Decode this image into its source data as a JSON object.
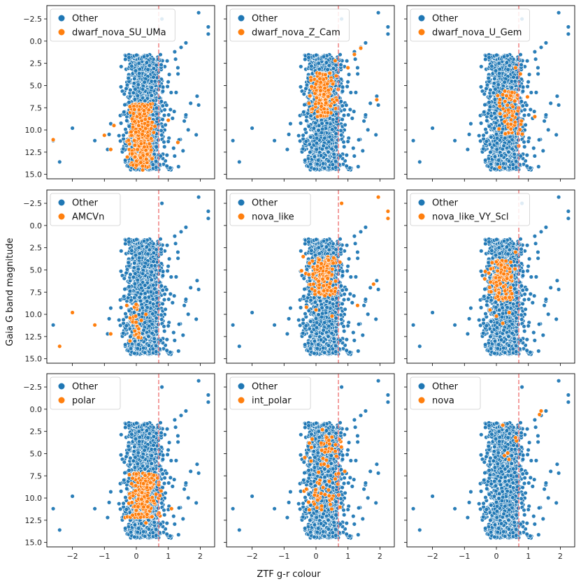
{
  "figure": {
    "xlabel": "ZTF g-r colour",
    "ylabel": "Gaia G band magnitude",
    "other_color": "#1f77b4",
    "highlight_color": "#ff7f0e",
    "threshold_color": "#f08080"
  },
  "chart_data": {
    "type": "scatter",
    "layout": "3x3 grid, shared axes",
    "xlim": [
      -2.8,
      2.45
    ],
    "ylim": [
      15.5,
      -4.0
    ],
    "y_inverted": true,
    "xticks": [
      -2,
      -1,
      0,
      1,
      2
    ],
    "yticks": [
      -2.5,
      0.0,
      2.5,
      5.0,
      7.5,
      10.0,
      12.5,
      15.0
    ],
    "xtick_labels": [
      "−2",
      "−1",
      "0",
      "1",
      "2"
    ],
    "ytick_labels": [
      "−2.5",
      "0.0",
      "2.5",
      "5.0",
      "7.5",
      "10.0",
      "12.5",
      "15.0"
    ],
    "threshold_x": 0.7,
    "grid": false,
    "legend_position": "upper-left",
    "background_series": {
      "name": "Other",
      "description": "all CVs, approx. 1500 points",
      "core": {
        "x_mean": 0.25,
        "x_sd": 0.28,
        "y_range": [
          1.5,
          14.5
        ]
      },
      "outliers": [
        [
          -2.6,
          11.2
        ],
        [
          -2.4,
          13.6
        ],
        [
          -2.0,
          9.8
        ],
        [
          -1.3,
          11.2
        ],
        [
          -0.9,
          12.2
        ],
        [
          -0.85,
          10.5
        ],
        [
          -0.8,
          9.3
        ],
        [
          1.0,
          11.3
        ],
        [
          0.8,
          -2.5
        ],
        [
          1.2,
          1.2
        ],
        [
          1.4,
          0.7
        ],
        [
          1.55,
          0.2
        ],
        [
          1.7,
          7.0
        ],
        [
          1.9,
          6.2
        ],
        [
          1.95,
          7.2
        ],
        [
          1.95,
          -3.2
        ],
        [
          2.25,
          -1.6
        ],
        [
          2.25,
          -0.8
        ],
        [
          1.3,
          3.0
        ],
        [
          1.5,
          9.0
        ]
      ]
    },
    "panels": [
      {
        "label": "dwarf_nova_SU_UMa",
        "cluster": {
          "x_mean": 0.15,
          "x_sd": 0.17,
          "y_min": 7.0,
          "y_max": 14.2,
          "n": 320
        },
        "extra": [
          [
            -2.6,
            11.1
          ],
          [
            -1.0,
            10.6
          ],
          [
            -0.8,
            12.2
          ],
          [
            -0.7,
            9.5
          ],
          [
            1.3,
            11.4
          ],
          [
            1.0,
            8.9
          ],
          [
            0.2,
            14.5
          ]
        ]
      },
      {
        "label": "dwarf_nova_Z_Cam",
        "cluster": {
          "x_mean": 0.22,
          "x_sd": 0.2,
          "y_min": 3.5,
          "y_max": 8.6,
          "n": 160
        },
        "extra": [
          [
            1.2,
            1.5
          ],
          [
            1.4,
            0.8
          ],
          [
            1.9,
            6.6
          ],
          [
            1.0,
            3.0
          ],
          [
            0.6,
            2.2
          ]
        ]
      },
      {
        "label": "dwarf_nova_U_Gem",
        "cluster": {
          "x_mean": 0.45,
          "x_sd": 0.2,
          "y_min": 5.5,
          "y_max": 10.5,
          "n": 70
        },
        "extra": [
          [
            0.6,
            3.0
          ],
          [
            0.75,
            3.7
          ],
          [
            1.2,
            8.5
          ],
          [
            0.7,
            11.8
          ],
          [
            0.1,
            14.2
          ]
        ]
      },
      {
        "label": "AMCVn",
        "cluster": {
          "x_mean": 0.05,
          "x_sd": 0.12,
          "y_min": 8.5,
          "y_max": 12.8,
          "n": 28
        },
        "extra": [
          [
            -2.4,
            13.6
          ],
          [
            -2.0,
            9.8
          ],
          [
            -1.3,
            11.2
          ],
          [
            -0.8,
            12.2
          ],
          [
            -0.2,
            13.0
          ],
          [
            -0.3,
            9.0
          ],
          [
            0.3,
            10.0
          ]
        ]
      },
      {
        "label": "nova_like",
        "cluster": {
          "x_mean": 0.25,
          "x_sd": 0.22,
          "y_min": 3.5,
          "y_max": 8.0,
          "n": 140
        },
        "extra": [
          [
            1.95,
            -3.2
          ],
          [
            2.25,
            -1.6
          ],
          [
            2.25,
            -0.8
          ],
          [
            0.8,
            -2.5
          ],
          [
            1.8,
            6.6
          ],
          [
            -0.4,
            3.5
          ],
          [
            -0.3,
            9.2
          ],
          [
            0.0,
            9.5
          ],
          [
            0.5,
            10.2
          ],
          [
            1.3,
            9.0
          ]
        ]
      },
      {
        "label": "nova_like_VY_Scl",
        "cluster": {
          "x_mean": 0.18,
          "x_sd": 0.2,
          "y_min": 3.8,
          "y_max": 8.4,
          "n": 110
        },
        "extra": [
          [
            0.0,
            10.2
          ],
          [
            0.2,
            11.0
          ],
          [
            0.4,
            9.8
          ],
          [
            -0.2,
            9.5
          ],
          [
            0.6,
            3.0
          ],
          [
            0.3,
            4.0
          ]
        ]
      },
      {
        "label": "polar",
        "cluster": {
          "x_mean": 0.22,
          "x_sd": 0.22,
          "y_min": 7.2,
          "y_max": 12.2,
          "n": 200
        },
        "extra": [
          [
            0.0,
            7.3
          ],
          [
            0.7,
            8.5
          ],
          [
            1.1,
            11.2
          ],
          [
            0.3,
            12.8
          ]
        ]
      },
      {
        "label": "int_polar",
        "cluster": {
          "x_mean": 0.25,
          "x_sd": 0.28,
          "y_min": 3.0,
          "y_max": 11.5,
          "n": 75
        },
        "extra": [
          [
            0.2,
            2.3
          ],
          [
            0.4,
            3.5
          ],
          [
            0.9,
            7.0
          ],
          [
            -0.3,
            9.0
          ]
        ]
      },
      {
        "label": "nova",
        "cluster": {
          "x_mean": 0.3,
          "x_sd": 0.2,
          "y_min": 1.8,
          "y_max": 6.0,
          "n": 4
        },
        "extra": [
          [
            1.4,
            0.2
          ],
          [
            1.35,
            0.6
          ],
          [
            0.2,
            1.8
          ],
          [
            0.6,
            3.2
          ]
        ]
      }
    ]
  }
}
